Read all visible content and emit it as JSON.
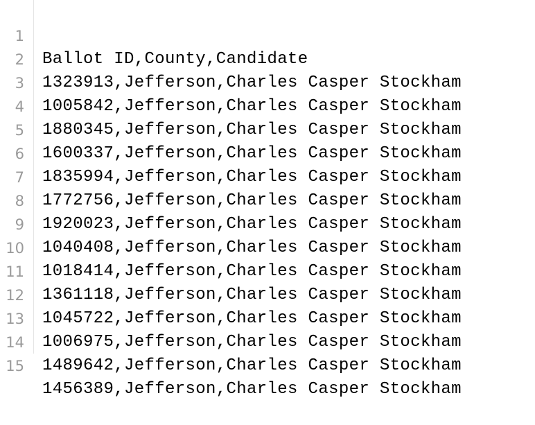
{
  "editor": {
    "lines": [
      {
        "number": "1",
        "text": "Ballot ID,County,Candidate"
      },
      {
        "number": "2",
        "text": "1323913,Jefferson,Charles Casper Stockham"
      },
      {
        "number": "3",
        "text": "1005842,Jefferson,Charles Casper Stockham"
      },
      {
        "number": "4",
        "text": "1880345,Jefferson,Charles Casper Stockham"
      },
      {
        "number": "5",
        "text": "1600337,Jefferson,Charles Casper Stockham"
      },
      {
        "number": "6",
        "text": "1835994,Jefferson,Charles Casper Stockham"
      },
      {
        "number": "7",
        "text": "1772756,Jefferson,Charles Casper Stockham"
      },
      {
        "number": "8",
        "text": "1920023,Jefferson,Charles Casper Stockham"
      },
      {
        "number": "9",
        "text": "1040408,Jefferson,Charles Casper Stockham"
      },
      {
        "number": "10",
        "text": "1018414,Jefferson,Charles Casper Stockham"
      },
      {
        "number": "11",
        "text": "1361118,Jefferson,Charles Casper Stockham"
      },
      {
        "number": "12",
        "text": "1045722,Jefferson,Charles Casper Stockham"
      },
      {
        "number": "13",
        "text": "1006975,Jefferson,Charles Casper Stockham"
      },
      {
        "number": "14",
        "text": "1489642,Jefferson,Charles Casper Stockham"
      },
      {
        "number": "15",
        "text": "1456389,Jefferson,Charles Casper Stockham"
      }
    ]
  }
}
